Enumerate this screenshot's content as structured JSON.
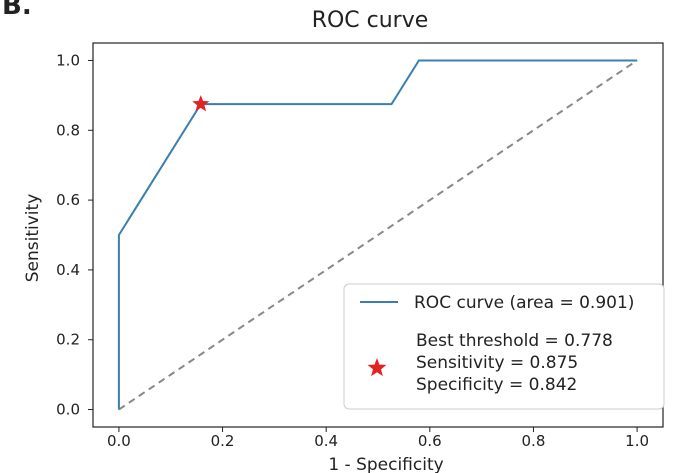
{
  "panel_label": "B.",
  "chart_data": {
    "type": "line",
    "title": "ROC curve",
    "xlabel": "1 - Specificity",
    "ylabel": "Sensitivity",
    "xlim": [
      -0.05,
      1.05
    ],
    "ylim": [
      -0.05,
      1.05
    ],
    "xticks": [
      "0.0",
      "0.2",
      "0.4",
      "0.6",
      "0.8",
      "1.0"
    ],
    "yticks": [
      "0.0",
      "0.2",
      "0.4",
      "0.6",
      "0.8",
      "1.0"
    ],
    "grid": false,
    "series": [
      {
        "name": "ROC curve (area = 0.901)",
        "color": "#3a7fae",
        "x": [
          0.0,
          0.0,
          0.158,
          0.526,
          0.579,
          1.0
        ],
        "y": [
          0.0,
          0.5,
          0.875,
          0.875,
          1.0,
          1.0
        ]
      }
    ],
    "reference_line": {
      "style": "dashed",
      "color": "#888888",
      "x": [
        0.0,
        1.0
      ],
      "y": [
        0.0,
        1.0
      ]
    },
    "best_point": {
      "x": 0.158,
      "y": 0.875,
      "marker": "star",
      "color": "#e32222"
    },
    "legend": {
      "placement": "lower-right",
      "entries": [
        "ROC curve (area = 0.901)",
        "Best threshold = 0.778",
        "Sensitivity = 0.875",
        "Specificity = 0.842"
      ]
    }
  }
}
